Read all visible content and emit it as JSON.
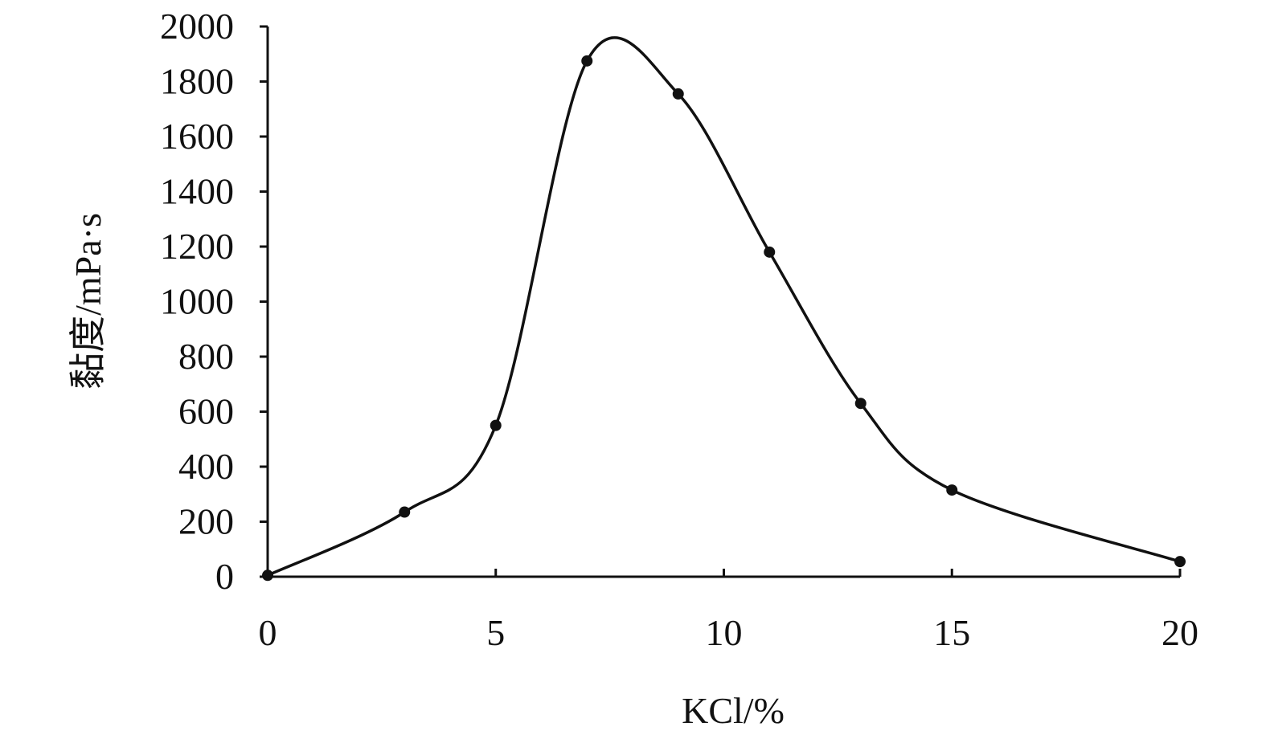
{
  "chart_data": {
    "type": "line",
    "title": "",
    "xlabel": "KCl/%",
    "ylabel": "黏度/mPa·s",
    "xlim": [
      0,
      20
    ],
    "ylim": [
      0,
      2000
    ],
    "xticks": [
      "0",
      "5",
      "10",
      "15",
      "20"
    ],
    "yticks": [
      "0",
      "200",
      "400",
      "600",
      "800",
      "1000",
      "1200",
      "1400",
      "1600",
      "1800",
      "2000"
    ],
    "grid": false,
    "legend": "none",
    "smooth": true,
    "series": [
      {
        "x": [
          0,
          3,
          5,
          7,
          9,
          11,
          13,
          15,
          20
        ],
        "y": [
          5,
          235,
          550,
          1875,
          1755,
          1180,
          630,
          315,
          55
        ],
        "color": "#111111"
      }
    ]
  }
}
